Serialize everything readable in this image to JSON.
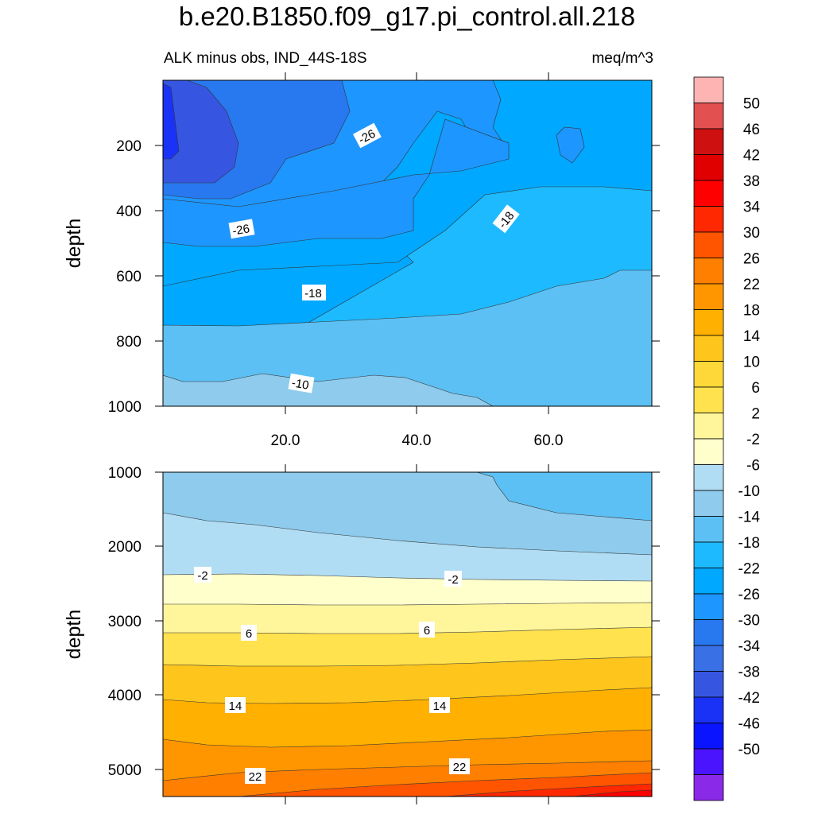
{
  "title": "b.e20.B1850.f09_g17.pi_control.all.218",
  "subtitle_left": "ALK minus obs, IND_44S-18S",
  "subtitle_right": "meq/m^3",
  "colorbar": {
    "labels": [
      "50",
      "46",
      "42",
      "38",
      "34",
      "30",
      "26",
      "22",
      "18",
      "14",
      "10",
      "6",
      "2",
      "-2",
      "-6",
      "-10",
      "-14",
      "-18",
      "-22",
      "-26",
      "-30",
      "-34",
      "-38",
      "-42",
      "-46",
      "-50"
    ],
    "colors": [
      "#ffb4b4",
      "#e25050",
      "#cf1010",
      "#e00000",
      "#ff0000",
      "#ff2800",
      "#ff5500",
      "#ff7f00",
      "#ff9600",
      "#ffb000",
      "#fec51c",
      "#fed838",
      "#ffe24e",
      "#fff59a",
      "#ffffcc",
      "#b0ddf4",
      "#8ecbec",
      "#5cc0f4",
      "#1ebaff",
      "#00a8ff",
      "#1e96ff",
      "#2878f0",
      "#3a70e6",
      "#3656e2",
      "#1a32f5",
      "#0a14ff",
      "#4a14ff",
      "#8a2ae8"
    ]
  },
  "chart_data": [
    {
      "type": "contour",
      "panel": "upper",
      "ylabel": "depth",
      "xlim": [
        1,
        76
      ],
      "ylim": [
        1000,
        0
      ],
      "x_ticks": [
        "20.0",
        "40.0",
        "60.0"
      ],
      "y_ticks": [
        "200",
        "400",
        "600",
        "800",
        "1000"
      ],
      "contour_labels": [
        "-26",
        "-26",
        "-18",
        "-18",
        "-10"
      ],
      "fill_levels": [
        -38,
        -34,
        -30,
        -26,
        -22,
        -18,
        -14,
        -10
      ]
    },
    {
      "type": "contour",
      "panel": "lower",
      "ylabel": "depth",
      "xlim": [
        1,
        76
      ],
      "ylim": [
        5400,
        1000
      ],
      "y_ticks": [
        "1000",
        "2000",
        "3000",
        "4000",
        "5000"
      ],
      "contour_labels": [
        "-2",
        "-2",
        "6",
        "6",
        "14",
        "14",
        "22",
        "22"
      ],
      "fill_levels": [
        -14,
        -10,
        -6,
        -2,
        2,
        6,
        10,
        14,
        18,
        22,
        26,
        30
      ]
    }
  ]
}
